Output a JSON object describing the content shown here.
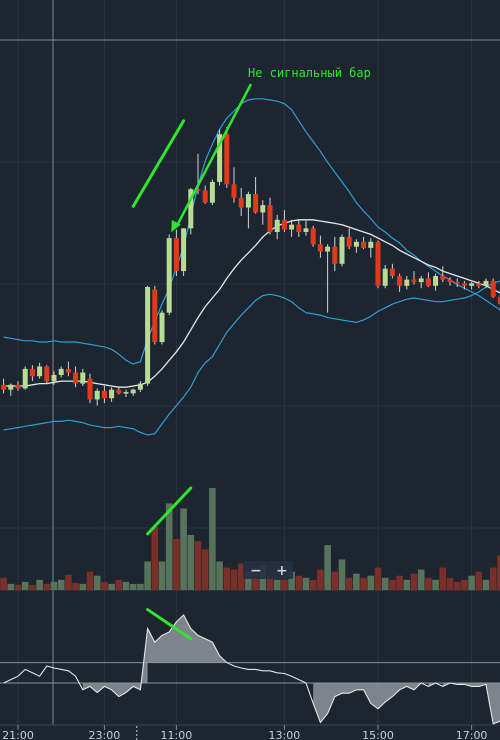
{
  "chart_data": {
    "type": "candlestick",
    "title": "",
    "annotations": [
      {
        "text": "Не сигнальный бар",
        "target": "candle",
        "index": 23
      }
    ],
    "x_ticks": [
      {
        "index": 2,
        "label": "21:00"
      },
      {
        "index": 14,
        "label": "23:00"
      },
      {
        "index": 24,
        "label": "11:00"
      },
      {
        "index": 39,
        "label": "13:00"
      },
      {
        "index": 52,
        "label": "15:00"
      },
      {
        "index": 65,
        "label": "17:00"
      }
    ],
    "session_break_index": 19,
    "price_range": [
      0,
      100
    ],
    "candles": [
      {
        "o": 37,
        "h": 42,
        "l": 30,
        "c": 33
      },
      {
        "o": 33,
        "h": 38,
        "l": 28,
        "c": 37
      },
      {
        "o": 37,
        "h": 40,
        "l": 32,
        "c": 34
      },
      {
        "o": 34,
        "h": 52,
        "l": 33,
        "c": 50
      },
      {
        "o": 50,
        "h": 53,
        "l": 40,
        "c": 44
      },
      {
        "o": 44,
        "h": 55,
        "l": 42,
        "c": 52
      },
      {
        "o": 52,
        "h": 53,
        "l": 38,
        "c": 40
      },
      {
        "o": 40,
        "h": 48,
        "l": 37,
        "c": 45
      },
      {
        "o": 45,
        "h": 52,
        "l": 43,
        "c": 50
      },
      {
        "o": 50,
        "h": 56,
        "l": 44,
        "c": 47
      },
      {
        "o": 47,
        "h": 52,
        "l": 35,
        "c": 38
      },
      {
        "o": 38,
        "h": 50,
        "l": 36,
        "c": 47
      },
      {
        "o": 42,
        "h": 46,
        "l": 22,
        "c": 25
      },
      {
        "o": 25,
        "h": 34,
        "l": 20,
        "c": 32
      },
      {
        "o": 32,
        "h": 36,
        "l": 22,
        "c": 26
      },
      {
        "o": 26,
        "h": 35,
        "l": 23,
        "c": 33
      },
      {
        "o": 33,
        "h": 35,
        "l": 29,
        "c": 30
      },
      {
        "o": 30,
        "h": 33,
        "l": 27,
        "c": 31
      },
      {
        "o": 30,
        "h": 34,
        "l": 28,
        "c": 33
      },
      {
        "o": 33,
        "h": 40,
        "l": 31,
        "c": 38
      },
      {
        "o": 38,
        "h": 118,
        "l": 36,
        "c": 117
      },
      {
        "o": 115,
        "h": 118,
        "l": 70,
        "c": 72
      },
      {
        "o": 72,
        "h": 98,
        "l": 70,
        "c": 96
      },
      {
        "o": 96,
        "h": 160,
        "l": 94,
        "c": 157
      },
      {
        "o": 157,
        "h": 164,
        "l": 126,
        "c": 130
      },
      {
        "o": 130,
        "h": 165,
        "l": 126,
        "c": 165
      },
      {
        "o": 165,
        "h": 198,
        "l": 160,
        "c": 197
      },
      {
        "o": 197,
        "h": 226,
        "l": 193,
        "c": 196
      },
      {
        "o": 196,
        "h": 200,
        "l": 185,
        "c": 186
      },
      {
        "o": 186,
        "h": 205,
        "l": 184,
        "c": 203
      },
      {
        "o": 203,
        "h": 246,
        "l": 200,
        "c": 242
      },
      {
        "o": 242,
        "h": 248,
        "l": 198,
        "c": 201
      },
      {
        "o": 201,
        "h": 215,
        "l": 186,
        "c": 190
      },
      {
        "o": 190,
        "h": 198,
        "l": 175,
        "c": 182
      },
      {
        "o": 182,
        "h": 195,
        "l": 165,
        "c": 193
      },
      {
        "o": 193,
        "h": 207,
        "l": 177,
        "c": 178
      },
      {
        "o": 178,
        "h": 188,
        "l": 168,
        "c": 184
      },
      {
        "o": 184,
        "h": 190,
        "l": 160,
        "c": 162
      },
      {
        "o": 162,
        "h": 176,
        "l": 156,
        "c": 172
      },
      {
        "o": 172,
        "h": 180,
        "l": 162,
        "c": 164
      },
      {
        "o": 164,
        "h": 172,
        "l": 158,
        "c": 168
      },
      {
        "o": 168,
        "h": 172,
        "l": 158,
        "c": 162
      },
      {
        "o": 162,
        "h": 172,
        "l": 159,
        "c": 165
      },
      {
        "o": 165,
        "h": 167,
        "l": 150,
        "c": 152
      },
      {
        "o": 152,
        "h": 159,
        "l": 141,
        "c": 146
      },
      {
        "o": 146,
        "h": 152,
        "l": 96,
        "c": 150
      },
      {
        "o": 150,
        "h": 158,
        "l": 130,
        "c": 136
      },
      {
        "o": 136,
        "h": 160,
        "l": 134,
        "c": 158
      },
      {
        "o": 158,
        "h": 165,
        "l": 148,
        "c": 150
      },
      {
        "o": 150,
        "h": 156,
        "l": 145,
        "c": 154
      },
      {
        "o": 154,
        "h": 158,
        "l": 148,
        "c": 149
      },
      {
        "o": 149,
        "h": 157,
        "l": 141,
        "c": 154
      },
      {
        "o": 154,
        "h": 155,
        "l": 116,
        "c": 118
      },
      {
        "o": 118,
        "h": 135,
        "l": 116,
        "c": 132
      },
      {
        "o": 132,
        "h": 136,
        "l": 124,
        "c": 126
      },
      {
        "o": 126,
        "h": 128,
        "l": 113,
        "c": 118
      },
      {
        "o": 118,
        "h": 126,
        "l": 115,
        "c": 123
      },
      {
        "o": 123,
        "h": 130,
        "l": 119,
        "c": 121
      },
      {
        "o": 121,
        "h": 126,
        "l": 116,
        "c": 124
      },
      {
        "o": 124,
        "h": 129,
        "l": 117,
        "c": 118
      },
      {
        "o": 118,
        "h": 128,
        "l": 114,
        "c": 126
      },
      {
        "o": 126,
        "h": 134,
        "l": 121,
        "c": 123
      },
      {
        "o": 123,
        "h": 125,
        "l": 118,
        "c": 121
      },
      {
        "o": 121,
        "h": 124,
        "l": 117,
        "c": 120
      },
      {
        "o": 120,
        "h": 122,
        "l": 115,
        "c": 118
      },
      {
        "o": 118,
        "h": 121,
        "l": 115,
        "c": 120
      },
      {
        "o": 120,
        "h": 122,
        "l": 116,
        "c": 118
      },
      {
        "o": 118,
        "h": 124,
        "l": 116,
        "c": 122
      },
      {
        "o": 122,
        "h": 124,
        "l": 108,
        "c": 109
      },
      {
        "o": 109,
        "h": 115,
        "l": 98,
        "c": 103
      }
    ],
    "sma": [
      36,
      36,
      36,
      36,
      37,
      38,
      38,
      39,
      40,
      40,
      40,
      40,
      39,
      38,
      37,
      36,
      35,
      35,
      36,
      37,
      39,
      44,
      50,
      57,
      64,
      72,
      82,
      92,
      101,
      108,
      115,
      124,
      132,
      139,
      145,
      151,
      158,
      163,
      167,
      169,
      171,
      172,
      172,
      172,
      171,
      170,
      169,
      168,
      166,
      164,
      162,
      160,
      157,
      154,
      151,
      147,
      144,
      141,
      138,
      135,
      133,
      130,
      128,
      126,
      124,
      122,
      120,
      118,
      115,
      112
    ],
    "bb_upper": [
      76,
      75,
      74,
      73,
      73,
      72,
      72,
      73,
      72,
      72,
      72,
      71,
      70,
      69,
      68,
      66,
      62,
      57,
      54,
      56,
      74,
      89,
      103,
      116,
      133,
      150,
      175,
      200,
      220,
      234,
      246,
      255,
      261,
      267,
      270,
      271,
      271,
      270,
      269,
      267,
      262,
      253,
      244,
      236,
      228,
      219,
      211,
      203,
      195,
      186,
      179,
      173,
      166,
      162,
      157,
      153,
      147,
      143,
      138,
      134,
      130,
      126,
      123,
      119,
      116,
      113,
      110,
      106,
      102,
      98
    ],
    "bb_lower": [
      0,
      1,
      2,
      3,
      4,
      5,
      6,
      7,
      7,
      8,
      7,
      6,
      4,
      3,
      2,
      2,
      3,
      2,
      1,
      -2,
      -4,
      -3,
      5,
      13,
      20,
      27,
      35,
      47,
      55,
      60,
      70,
      80,
      87,
      94,
      100,
      106,
      110,
      111,
      110,
      108,
      105,
      100,
      96,
      95,
      94,
      92,
      91,
      90,
      89,
      88,
      90,
      93,
      97,
      100,
      103,
      105,
      107,
      108,
      107,
      106,
      105,
      105,
      106,
      107,
      108,
      110,
      113,
      117,
      120,
      122
    ],
    "volume": {
      "range": [
        0,
        100
      ],
      "values": [
        12,
        6,
        5,
        8,
        5,
        10,
        6,
        8,
        10,
        15,
        7,
        6,
        18,
        14,
        8,
        6,
        10,
        8,
        6,
        6,
        28,
        62,
        28,
        85,
        50,
        80,
        54,
        48,
        40,
        100,
        28,
        22,
        20,
        26,
        18,
        22,
        24,
        14,
        10,
        10,
        18,
        14,
        12,
        10,
        20,
        44,
        18,
        30,
        12,
        16,
        12,
        14,
        22,
        12,
        10,
        14,
        10,
        16,
        20,
        12,
        10,
        22,
        12,
        8,
        10,
        14,
        18,
        10,
        22,
        34
      ]
    },
    "oscillator": {
      "range": [
        -60,
        100
      ],
      "level_high": 30,
      "level_low": 0,
      "values": [
        0,
        5,
        10,
        20,
        15,
        10,
        25,
        22,
        20,
        18,
        10,
        -10,
        -5,
        -14,
        -5,
        -10,
        -20,
        -14,
        -5,
        -10,
        80,
        60,
        70,
        75,
        90,
        100,
        80,
        70,
        65,
        60,
        40,
        30,
        25,
        22,
        20,
        20,
        18,
        18,
        15,
        14,
        10,
        5,
        0,
        -30,
        -58,
        -45,
        -20,
        -15,
        -15,
        -10,
        -10,
        -30,
        -38,
        -28,
        -20,
        -10,
        -5,
        -10,
        0,
        -5,
        0,
        -5,
        0,
        -2,
        -2,
        -5,
        -5,
        -2,
        -60,
        -56
      ]
    },
    "trend_lines": [
      {
        "pane": "price",
        "from": {
          "index": 18,
          "value": 183
        },
        "to": {
          "index": 25,
          "value": 253
        }
      },
      {
        "pane": "volume",
        "from": {
          "index": 20,
          "value": 55
        },
        "to": {
          "index": 26,
          "value": 100
        }
      },
      {
        "pane": "oscillator",
        "from": {
          "index": 20,
          "value": 108
        },
        "to": {
          "index": 26,
          "value": 65
        }
      }
    ],
    "colors": {
      "background": "#1c2530",
      "grid": "#2a3441",
      "bull": "#b8dc94",
      "bear": "#e03a1c",
      "sma": "#e6e6e6",
      "bands": "#2e9fd6",
      "volume_bull": "#57745a",
      "volume_bear": "#7a2f28",
      "oscillator_line": "#e6e6e6",
      "oscillator_fill": "#8f959c",
      "annotation": "#2ee62e",
      "level": "#8a939d"
    },
    "zoom_controls": {
      "minus_label": "−",
      "plus_label": "+"
    }
  }
}
